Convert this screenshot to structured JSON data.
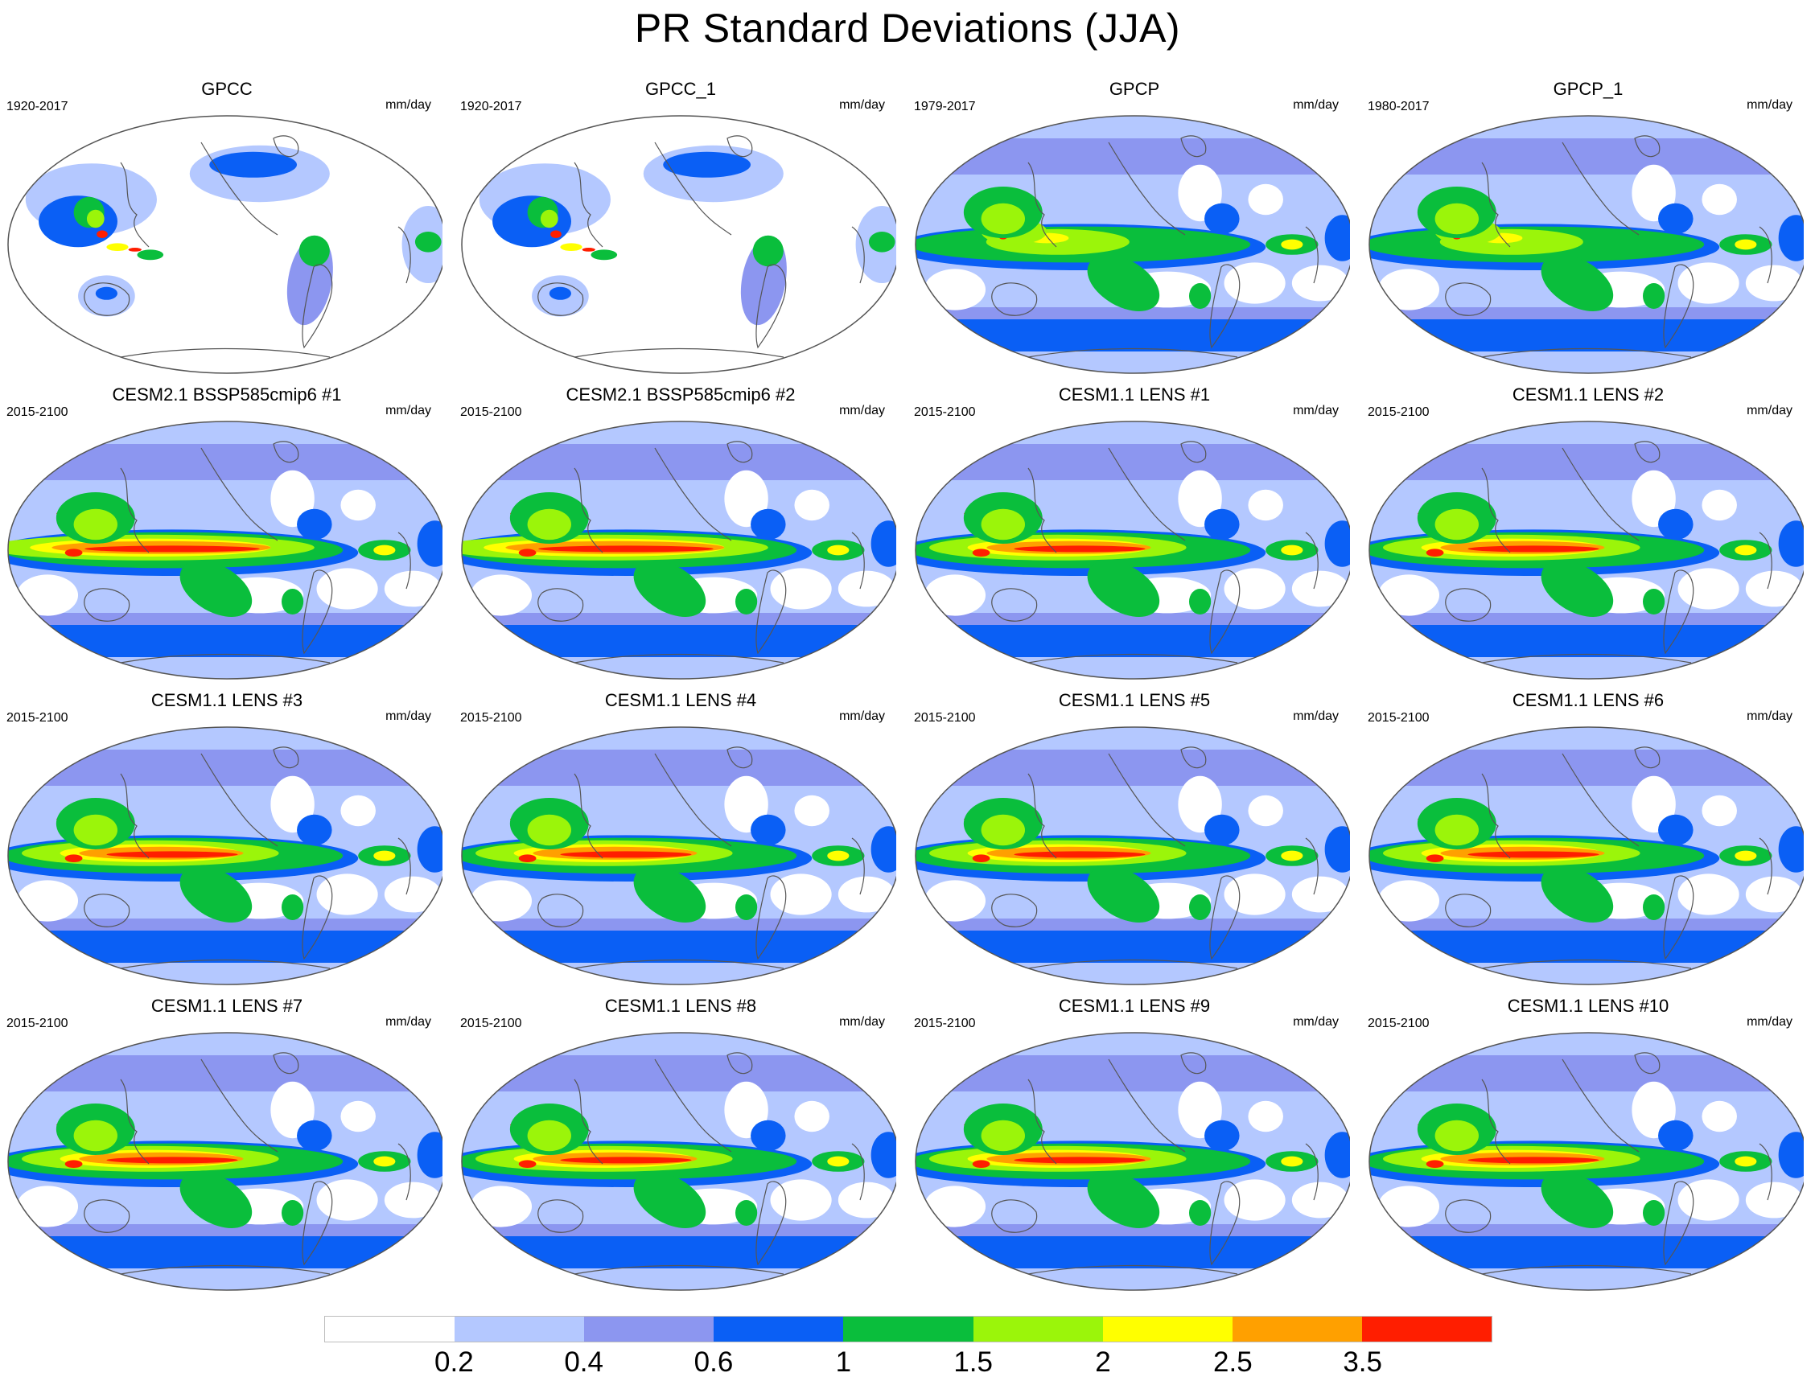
{
  "title": "PR Standard Deviations (JJA)",
  "units": "mm/day",
  "panels": [
    {
      "title": "GPCC",
      "period": "1920-2017",
      "kind": "land"
    },
    {
      "title": "GPCC_1",
      "period": "1920-2017",
      "kind": "land"
    },
    {
      "title": "GPCP",
      "period": "1979-2017",
      "kind": "obs"
    },
    {
      "title": "GPCP_1",
      "period": "1980-2017",
      "kind": "obs"
    },
    {
      "title": "CESM2.1 BSSP585cmip6 #1",
      "period": "2015-2100",
      "kind": "cesm2"
    },
    {
      "title": "CESM2.1 BSSP585cmip6 #2",
      "period": "2015-2100",
      "kind": "cesm2"
    },
    {
      "title": "CESM1.1 LENS #1",
      "period": "2015-2100",
      "kind": "lens"
    },
    {
      "title": "CESM1.1 LENS #2",
      "period": "2015-2100",
      "kind": "lens"
    },
    {
      "title": "CESM1.1 LENS #3",
      "period": "2015-2100",
      "kind": "lens"
    },
    {
      "title": "CESM1.1 LENS #4",
      "period": "2015-2100",
      "kind": "lens"
    },
    {
      "title": "CESM1.1 LENS #5",
      "period": "2015-2100",
      "kind": "lens"
    },
    {
      "title": "CESM1.1 LENS #6",
      "period": "2015-2100",
      "kind": "lens"
    },
    {
      "title": "CESM1.1 LENS #7",
      "period": "2015-2100",
      "kind": "lens"
    },
    {
      "title": "CESM1.1 LENS #8",
      "period": "2015-2100",
      "kind": "lens"
    },
    {
      "title": "CESM1.1 LENS #9",
      "period": "2015-2100",
      "kind": "lens"
    },
    {
      "title": "CESM1.1 LENS #10",
      "period": "2015-2100",
      "kind": "lens"
    }
  ],
  "colorbar": {
    "labels": [
      "0.2",
      "0.4",
      "0.6",
      "1",
      "1.5",
      "2",
      "2.5",
      "3.5"
    ],
    "colors": [
      "#ffffff",
      "#b4c8ff",
      "#8c96f0",
      "#0a5ff5",
      "#0abe3c",
      "#9bf50a",
      "#ffff00",
      "#ffa000",
      "#ff1e00"
    ]
  }
}
